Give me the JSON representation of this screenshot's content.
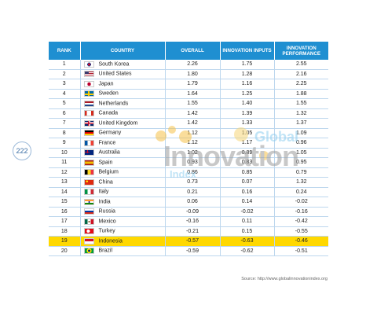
{
  "page_number": "222",
  "headers": [
    "RANK",
    "COUNTRY",
    "OVERALL",
    "INNOVATION INPUTS",
    "INNOVATION PERFORMANCE"
  ],
  "rows": [
    {
      "rank": "1",
      "country": "South Korea",
      "overall": "2.26",
      "inputs": "1.75",
      "performance": "2.55"
    },
    {
      "rank": "2",
      "country": "United States",
      "overall": "1.80",
      "inputs": "1.28",
      "performance": "2.16"
    },
    {
      "rank": "3",
      "country": "Japan",
      "overall": "1.79",
      "inputs": "1.16",
      "performance": "2.25"
    },
    {
      "rank": "4",
      "country": "Sweden",
      "overall": "1.64",
      "inputs": "1.25",
      "performance": "1.88"
    },
    {
      "rank": "5",
      "country": "Netherlands",
      "overall": "1.55",
      "inputs": "1.40",
      "performance": "1.55"
    },
    {
      "rank": "6",
      "country": "Canada",
      "overall": "1.42",
      "inputs": "1.39",
      "performance": "1.32"
    },
    {
      "rank": "7",
      "country": "United Kingdom",
      "overall": "1.42",
      "inputs": "1.33",
      "performance": "1.37"
    },
    {
      "rank": "8",
      "country": "Germany",
      "overall": "1.12",
      "inputs": "1.05",
      "performance": "1.09"
    },
    {
      "rank": "9",
      "country": "France",
      "overall": "1.12",
      "inputs": "1.17",
      "performance": "0.96"
    },
    {
      "rank": "10",
      "country": "Australia",
      "overall": "1.02",
      "inputs": "0.89",
      "performance": "1.05"
    },
    {
      "rank": "11",
      "country": "Spain",
      "overall": "0.93",
      "inputs": "0.83",
      "performance": "0.95"
    },
    {
      "rank": "12",
      "country": "Belgium",
      "overall": "0.86",
      "inputs": "0.85",
      "performance": "0.79"
    },
    {
      "rank": "13",
      "country": "China",
      "overall": "0.73",
      "inputs": "0.07",
      "performance": "1.32"
    },
    {
      "rank": "14",
      "country": "Italy",
      "overall": "0.21",
      "inputs": "0.16",
      "performance": "0.24"
    },
    {
      "rank": "15",
      "country": "India",
      "overall": "0.06",
      "inputs": "0.14",
      "performance": "-0.02"
    },
    {
      "rank": "16",
      "country": "Russia",
      "overall": "-0.09",
      "inputs": "-0.02",
      "performance": "-0.16"
    },
    {
      "rank": "17",
      "country": "Mexico",
      "overall": "-0.16",
      "inputs": "0.11",
      "performance": "-0.42"
    },
    {
      "rank": "18",
      "country": "Turkey",
      "overall": "-0.21",
      "inputs": "0.15",
      "performance": "-0.55"
    },
    {
      "rank": "19",
      "country": "Indonesia",
      "overall": "-0.57",
      "inputs": "-0.63",
      "performance": "-0.46"
    },
    {
      "rank": "20",
      "country": "Brazil",
      "overall": "-0.59",
      "inputs": "-0.62",
      "performance": "-0.51"
    }
  ],
  "highlight_rank": "19",
  "flags": {
    "South Korea": "korea-flag-icon",
    "United States": "usa-flag-icon",
    "Japan": "japan-flag-icon",
    "Sweden": "sweden-flag-icon",
    "Netherlands": "netherlands-flag-icon",
    "Canada": "canada-flag-icon",
    "United Kingdom": "uk-flag-icon",
    "Germany": "germany-flag-icon",
    "France": "france-flag-icon",
    "Australia": "australia-flag-icon",
    "Spain": "spain-flag-icon",
    "Belgium": "belgium-flag-icon",
    "China": "china-flag-icon",
    "Italy": "italy-flag-icon",
    "India": "india-flag-icon",
    "Russia": "russia-flag-icon",
    "Mexico": "mexico-flag-icon",
    "Turkey": "turkey-flag-icon",
    "Indonesia": "indonesia-flag-icon",
    "Brazil": "brazil-flag-icon"
  },
  "watermark": {
    "global": "Global",
    "innovation": "Innovation",
    "index": "Index"
  },
  "source": "Source: http://www.globalinnovationindex.org",
  "colors": {
    "header": "#1f8fd1",
    "highlight": "#ffd800",
    "grid": "#bdd7ee"
  }
}
